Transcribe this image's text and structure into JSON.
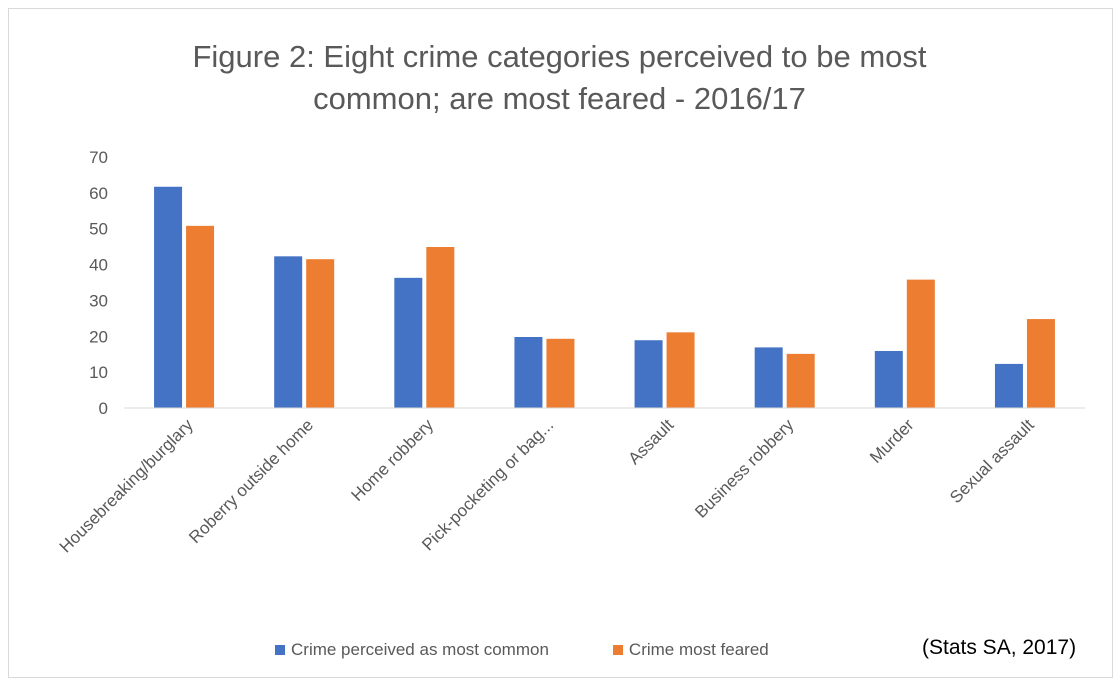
{
  "chart_data": {
    "type": "bar",
    "title_lines": [
      "Figure 2: Eight crime categories perceived to be most",
      "common; are most feared - 2016/17"
    ],
    "categories": [
      "Housebreaking/burglary",
      "Roberry outside home",
      "Home robbery",
      "Pick-pocketing or bag...",
      "Assault",
      "Business robbery",
      "Murder",
      "Sexual assault"
    ],
    "series": [
      {
        "name": "Crime perceived as most common",
        "color": "#4472C4",
        "values": [
          61.7,
          42.3,
          36.3,
          19.8,
          18.9,
          16.9,
          15.9,
          12.3
        ]
      },
      {
        "name": "Crime most feared",
        "color": "#ED7D31",
        "values": [
          50.8,
          41.5,
          44.9,
          19.3,
          21.1,
          15.1,
          35.8,
          24.8
        ]
      }
    ],
    "ylim": [
      0,
      70
    ],
    "yticks": [
      0,
      10,
      20,
      30,
      40,
      50,
      60,
      70
    ],
    "grid": false,
    "legend_position": "bottom"
  },
  "source_note": "(Stats SA, 2017)"
}
